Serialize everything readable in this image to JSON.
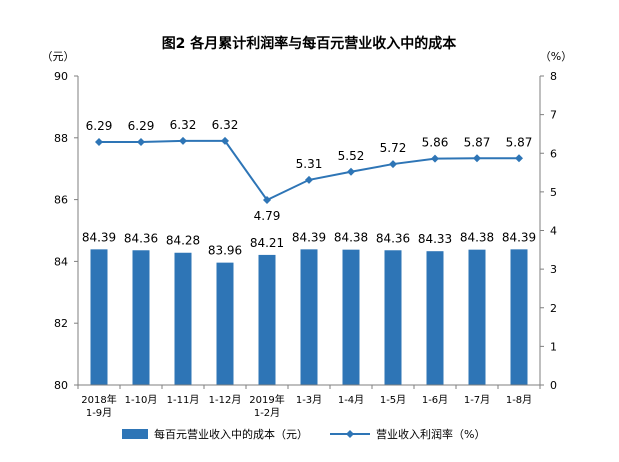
{
  "chart_data": {
    "type": "bar",
    "title": "图2 各月累计利润率与每百元营业收入中的成本",
    "left_axis_unit": "（元）",
    "right_axis_unit": "（%）",
    "categories": [
      [
        "2018年",
        "1-9月"
      ],
      [
        "1-10月"
      ],
      [
        "1-11月"
      ],
      [
        "1-12月"
      ],
      [
        "2019年",
        "1-2月"
      ],
      [
        "1-3月"
      ],
      [
        "1-4月"
      ],
      [
        "1-5月"
      ],
      [
        "1-6月"
      ],
      [
        "1-7月"
      ],
      [
        "1-8月"
      ]
    ],
    "left_ylim": [
      80,
      90
    ],
    "left_yticks": [
      80,
      82,
      84,
      86,
      88,
      90
    ],
    "right_ylim": [
      0,
      8
    ],
    "right_yticks": [
      0,
      1,
      2,
      3,
      4,
      5,
      6,
      7,
      8
    ],
    "grid": false,
    "legend_position": "bottom",
    "series": [
      {
        "name": "每百元营业收入中的成本（元）",
        "type": "bar",
        "axis": "left",
        "color": "#2E75B6",
        "values": [
          84.39,
          84.36,
          84.28,
          83.96,
          84.21,
          84.39,
          84.38,
          84.36,
          84.33,
          84.38,
          84.39
        ],
        "labels": [
          "84.39",
          "84.36",
          "84.28",
          "83.96",
          "84.21",
          "84.39",
          "84.38",
          "84.36",
          "84.33",
          "84.38",
          "84.39"
        ]
      },
      {
        "name": "营业收入利润率（%）",
        "type": "line",
        "axis": "right",
        "color": "#2E75B6",
        "values": [
          6.29,
          6.29,
          6.32,
          6.32,
          4.79,
          5.31,
          5.52,
          5.72,
          5.86,
          5.87,
          5.87
        ],
        "labels": [
          "6.29",
          "6.29",
          "6.32",
          "6.32",
          "4.79",
          "5.31",
          "5.52",
          "5.72",
          "5.86",
          "5.87",
          "5.87"
        ]
      }
    ]
  }
}
